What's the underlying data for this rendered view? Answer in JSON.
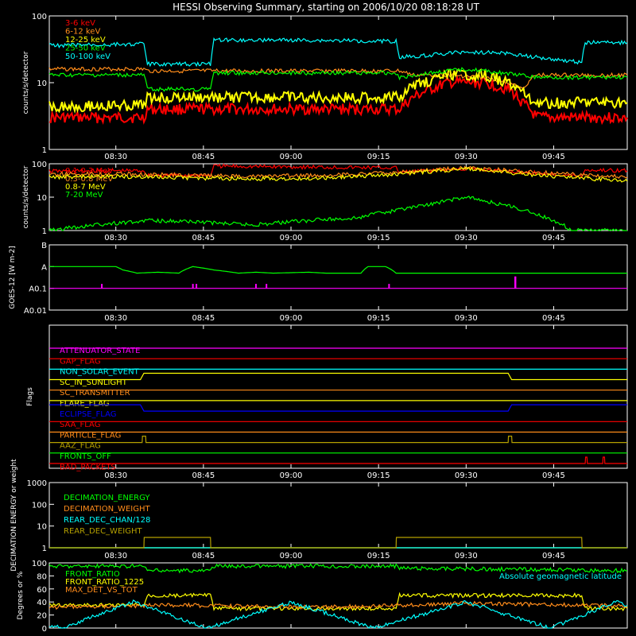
{
  "title": "HESSI Observing Summary, starting on 2006/10/20 08:18:28 UT",
  "colors": {
    "red": "#ff0000",
    "orange": "#ff8c1a",
    "yellow": "#ffff00",
    "green": "#00ff00",
    "cyan": "#00ffff",
    "magenta": "#ff00ff",
    "blue": "#0000ff",
    "olive": "#b4a000",
    "white": "#ffffff"
  },
  "chart_data": [
    {
      "id": "lo",
      "type": "line",
      "ylabel": "counts/s/detector",
      "yscale": "log",
      "ylim": [
        1,
        100
      ],
      "yticks": [
        "1",
        "10",
        "100"
      ],
      "xlim": [
        8.31,
        9.96
      ],
      "xticks": [
        "08:30",
        "08:45",
        "09:00",
        "09:15",
        "09:30",
        "09:45"
      ],
      "series": [
        {
          "name": "3-6 keV",
          "color": "#ff0000",
          "x": [
            8.31,
            8.58,
            8.59,
            8.77,
            8.78,
            9.3,
            9.31,
            9.35,
            9.45,
            9.55,
            9.62,
            9.66,
            9.7,
            9.96
          ],
          "y": [
            3,
            3,
            4,
            4,
            4,
            4,
            4,
            6,
            10,
            10,
            8,
            5,
            3,
            3
          ]
        },
        {
          "name": "6-12 keV",
          "color": "#ff8c1a",
          "x": [
            8.31,
            8.58,
            8.59,
            8.77,
            8.78,
            9.3,
            9.31,
            9.35,
            9.45,
            9.55,
            9.62,
            9.66,
            9.7,
            9.96
          ],
          "y": [
            16,
            16,
            15,
            15,
            15,
            15,
            15,
            13,
            13,
            12,
            10,
            8,
            13,
            13
          ]
        },
        {
          "name": "12-25 keV",
          "color": "#ffff00",
          "x": [
            8.31,
            8.58,
            8.59,
            8.77,
            8.78,
            9.3,
            9.31,
            9.35,
            9.45,
            9.55,
            9.62,
            9.66,
            9.7,
            9.96
          ],
          "y": [
            4.5,
            4.5,
            6,
            6,
            6,
            6,
            6,
            9,
            13,
            13,
            10,
            7,
            5,
            5
          ]
        },
        {
          "name": "25-50 keV",
          "color": "#00ff00",
          "x": [
            8.31,
            8.58,
            8.59,
            8.77,
            8.78,
            9.3,
            9.31,
            9.4,
            9.5,
            9.6,
            9.7,
            9.96
          ],
          "y": [
            13,
            13,
            8,
            8,
            14,
            14,
            12,
            14,
            16,
            14,
            12,
            12
          ]
        },
        {
          "name": "50-100 keV",
          "color": "#00ffff",
          "x": [
            8.31,
            8.58,
            8.59,
            8.77,
            8.78,
            9.3,
            9.31,
            9.4,
            9.5,
            9.6,
            9.7,
            9.83,
            9.84,
            9.96
          ],
          "y": [
            36,
            38,
            19,
            19,
            44,
            42,
            24,
            26,
            29,
            28,
            24,
            20,
            40,
            40
          ]
        }
      ]
    },
    {
      "id": "hi",
      "type": "line",
      "ylabel": "counts/s/detector",
      "yscale": "log",
      "ylim": [
        1,
        100
      ],
      "yticks": [
        "1",
        "10",
        "100"
      ],
      "xlim": [
        8.31,
        9.96
      ],
      "xticks": [
        "08:30",
        "08:45",
        "09:00",
        "09:15",
        "09:30",
        "09:45"
      ],
      "series": [
        {
          "name": "0.1-0.3 MeV",
          "color": "#ff0000",
          "x": [
            8.31,
            8.58,
            8.59,
            8.77,
            8.78,
            9.3,
            9.31,
            9.5,
            9.83,
            9.84,
            9.96
          ],
          "y": [
            60,
            62,
            45,
            45,
            85,
            75,
            55,
            70,
            42,
            65,
            62
          ]
        },
        {
          "name": "0.3-0.8 MeV",
          "color": "#ff8c1a",
          "x": [
            8.31,
            8.5,
            8.7,
            8.9,
            9.1,
            9.3,
            9.5,
            9.7,
            9.96
          ],
          "y": [
            48,
            50,
            45,
            42,
            45,
            55,
            75,
            55,
            40
          ]
        },
        {
          "name": "0.8-7 MeV",
          "color": "#ffff00",
          "x": [
            8.31,
            8.5,
            8.7,
            8.9,
            9.1,
            9.3,
            9.5,
            9.7,
            9.96
          ],
          "y": [
            40,
            42,
            38,
            35,
            38,
            48,
            70,
            45,
            30
          ]
        },
        {
          "name": "7-20 MeV",
          "color": "#00ff00",
          "x": [
            8.31,
            8.6,
            8.9,
            9.2,
            9.3,
            9.4,
            9.5,
            9.6,
            9.7,
            9.8,
            9.96
          ],
          "y": [
            1,
            2,
            1.5,
            2.5,
            4,
            6,
            10,
            6,
            3,
            1,
            1
          ]
        }
      ]
    },
    {
      "id": "goes",
      "type": "line",
      "ylabel": "GOES-12 [W m-2]",
      "yscale": "log",
      "ylim": [
        0.01,
        10
      ],
      "yticks": [
        "A0.01",
        "A0.1",
        "A",
        "B"
      ],
      "xlim": [
        8.31,
        9.96
      ],
      "xticks": [
        "08:30",
        "08:45",
        "09:00",
        "09:15",
        "09:30",
        "09:45"
      ],
      "series": [
        {
          "name": "",
          "color": "#00ff00",
          "x": [
            8.31,
            8.5,
            8.52,
            8.56,
            8.62,
            8.68,
            8.72,
            8.78,
            8.85,
            8.9,
            8.95,
            9.05,
            9.1,
            9.2,
            9.22,
            9.27,
            9.3,
            9.96
          ],
          "y": [
            1.0,
            1.0,
            0.7,
            0.5,
            0.55,
            0.5,
            1.0,
            0.7,
            0.5,
            0.55,
            0.5,
            0.55,
            0.5,
            0.5,
            1.0,
            1.0,
            0.5,
            0.5
          ]
        },
        {
          "name": "",
          "color": "#ff00ff",
          "x": [
            8.31,
            9.96
          ],
          "y": [
            0.1,
            0.1
          ]
        }
      ]
    },
    {
      "id": "flags",
      "type": "line",
      "ylabel": "Flags",
      "xlim": [
        8.31,
        9.96
      ],
      "xticks": [
        "08:30",
        "08:45",
        "09:00",
        "09:15",
        "09:30",
        "09:45"
      ],
      "series": [
        {
          "name": "ATTENUATOR_STATE",
          "color": "#ff00ff",
          "x": [
            8.31,
            9.96
          ],
          "y": [
            0,
            0
          ]
        },
        {
          "name": "GAP_FLAG",
          "color": "#ff0000",
          "x": [
            8.31,
            9.96
          ],
          "y": [
            0,
            0
          ]
        },
        {
          "name": "NON_SOLAR_EVENT",
          "color": "#00ffff",
          "x": [
            8.31,
            9.96
          ],
          "y": [
            0,
            0
          ]
        },
        {
          "name": "SC_IN_SUNLIGHT",
          "color": "#ffff00",
          "x": [
            8.31,
            8.57,
            8.58,
            9.62,
            9.63,
            9.96
          ],
          "y": [
            0,
            0,
            1,
            1,
            0,
            0
          ]
        },
        {
          "name": "SC_TRANSMITTER",
          "color": "#ff8c1a",
          "x": [
            8.31,
            9.96
          ],
          "y": [
            0,
            0
          ]
        },
        {
          "name": "FLARE_FLAG",
          "color": "#ffff00",
          "x": [
            8.31,
            9.96
          ],
          "y": [
            0,
            0
          ]
        },
        {
          "name": "ECLIPSE_FLAG",
          "color": "#0000ff",
          "x": [
            8.31,
            8.57,
            8.58,
            9.62,
            9.63,
            9.96
          ],
          "y": [
            1,
            1,
            0,
            0,
            1,
            1
          ]
        },
        {
          "name": "SAA_FLAG",
          "color": "#ff0000",
          "x": [
            8.31,
            9.96
          ],
          "y": [
            0,
            0
          ]
        },
        {
          "name": "PARTICLE_FLAG",
          "color": "#ff8c1a",
          "x": [
            8.31,
            9.96
          ],
          "y": [
            0,
            0
          ]
        },
        {
          "name": "AAZ_FLAG",
          "color": "#b4a000",
          "x": [
            8.31,
            8.575,
            8.576,
            8.585,
            8.586,
            9.62,
            9.621,
            9.63,
            9.631,
            9.96
          ],
          "y": [
            0,
            0,
            1,
            1,
            0,
            0,
            1,
            1,
            0,
            0
          ]
        },
        {
          "name": "FRONTS_OFF",
          "color": "#00ff00",
          "x": [
            8.31,
            9.96
          ],
          "y": [
            0,
            0
          ]
        },
        {
          "name": "BAD_PACKETS",
          "color": "#ff0000",
          "x": [
            8.31,
            9.84,
            9.841,
            9.845,
            9.846,
            9.89,
            9.891,
            9.895,
            9.896,
            9.96
          ],
          "y": [
            0,
            0,
            1,
            1,
            0,
            0,
            1,
            1,
            0,
            0
          ]
        }
      ]
    },
    {
      "id": "dec",
      "type": "line",
      "ylabel": "DECIMATION ENERGY or weight",
      "yscale": "log",
      "ylim": [
        1,
        1000
      ],
      "yticks": [
        "1",
        "10",
        "100",
        "1000"
      ],
      "xlim": [
        8.31,
        9.96
      ],
      "xticks": [
        "08:30",
        "08:45",
        "09:00",
        "09:15",
        "09:30",
        "09:45"
      ],
      "series": [
        {
          "name": "DECIMATION_ENERGY",
          "color": "#00ff00",
          "x": [
            8.31,
            9.96
          ],
          "y": [
            1,
            1
          ]
        },
        {
          "name": "DECIMATION_WEIGHT",
          "color": "#ff8c1a",
          "x": [
            8.31,
            9.96
          ],
          "y": [
            1,
            1
          ]
        },
        {
          "name": "REAR_DEC_CHAN/128",
          "color": "#00ffff",
          "x": [
            8.31,
            9.96
          ],
          "y": [
            1,
            1
          ]
        },
        {
          "name": "REAR_DEC_WEIGHT",
          "color": "#b4a000",
          "x": [
            8.31,
            8.58,
            8.581,
            8.77,
            8.771,
            9.3,
            9.301,
            9.83,
            9.831,
            9.96
          ],
          "y": [
            1,
            1,
            3,
            3,
            1,
            1,
            3,
            3,
            1,
            1
          ]
        }
      ]
    },
    {
      "id": "ratio",
      "type": "line",
      "ylabel": "Degrees or %",
      "ylim": [
        0,
        100
      ],
      "yticks": [
        "0",
        "20",
        "40",
        "60",
        "80",
        "100"
      ],
      "xlim": [
        8.31,
        9.96
      ],
      "xticks": [
        "08:30",
        "08:45",
        "09:00",
        "09:15",
        "09:30",
        "09:45"
      ],
      "series": [
        {
          "name": "FRONT_RATIO",
          "color": "#00ff00",
          "x": [
            8.31,
            8.58,
            8.59,
            8.77,
            8.78,
            9.3,
            9.31,
            9.96
          ],
          "y": [
            95,
            95,
            88,
            88,
            95,
            95,
            92,
            88
          ]
        },
        {
          "name": "FRONT_RATIO_1225",
          "color": "#ffff00",
          "x": [
            8.31,
            8.58,
            8.59,
            8.77,
            8.78,
            9.3,
            9.31,
            9.83,
            9.84,
            9.96
          ],
          "y": [
            35,
            35,
            50,
            50,
            30,
            30,
            50,
            50,
            30,
            30
          ]
        },
        {
          "name": "MAX_DET_VS_TOT",
          "color": "#ff8c1a",
          "x": [
            8.31,
            8.5,
            8.7,
            8.9,
            9.1,
            9.3,
            9.5,
            9.7,
            9.96
          ],
          "y": [
            32,
            34,
            35,
            33,
            32,
            35,
            38,
            36,
            34
          ]
        },
        {
          "name": "Absolute geomagnetic latitude",
          "color": "#00ffff",
          "x": [
            8.31,
            8.345,
            8.55,
            8.76,
            9.0,
            9.235,
            9.5,
            9.74,
            9.93,
            9.96
          ],
          "y": [
            5,
            0,
            40,
            0,
            40,
            0,
            40,
            0,
            40,
            35
          ]
        }
      ]
    }
  ]
}
